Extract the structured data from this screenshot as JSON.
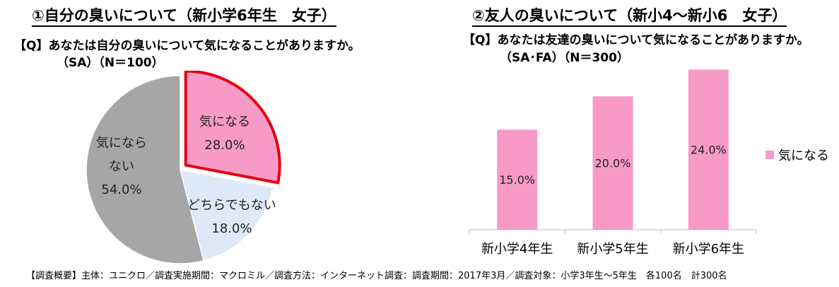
{
  "left_panel": {
    "title": "①自分の臭いについて（新小学6年生　女子）",
    "question": "【Q】あなたは自分の臭いについて気になることがありますか。",
    "n_label": "（SA）（N＝100）"
  },
  "right_panel": {
    "title": "②友人の臭いについて（新小4～新小6　女子）",
    "question": "【Q】あなたは友達の臭いについて気になることがありますか。",
    "n_label": "（SA･FA）（N＝300）"
  },
  "footnote": "【調査概要】主体：ユニクロ／調査実施期間：マクロミル／調査方法：インターネット調査：調査期間：2017年3月／調査対象：小学3年生～5年生　各100名　計300名",
  "chart_data": [
    {
      "type": "pie",
      "title": "①自分の臭いについて（新小学6年生　女子）",
      "slices": [
        {
          "label_lines": [
            "気になる"
          ],
          "value": 28.0,
          "value_label": "28.0%",
          "color": "#f79ac8",
          "highlight_color": "#e3000f"
        },
        {
          "label_lines": [
            "どちらでもない"
          ],
          "value": 18.0,
          "value_label": "18.0%",
          "color": "#dde9f6"
        },
        {
          "label_lines": [
            "気になら",
            "ない"
          ],
          "value": 54.0,
          "value_label": "54.0%",
          "color": "#a6a6a6"
        }
      ]
    },
    {
      "type": "bar",
      "title": "②友人の臭いについて（新小4～新小6　女子）",
      "categories": [
        "新小学4年生",
        "新小学5年生",
        "新小学6年生"
      ],
      "series": [
        {
          "name": "気になる",
          "values": [
            15.0,
            20.0,
            24.0
          ],
          "value_labels": [
            "15.0%",
            "20.0%",
            "24.0%"
          ],
          "color": "#f79ac8"
        }
      ],
      "ylim": [
        0,
        25
      ],
      "legend_position": "right"
    }
  ]
}
